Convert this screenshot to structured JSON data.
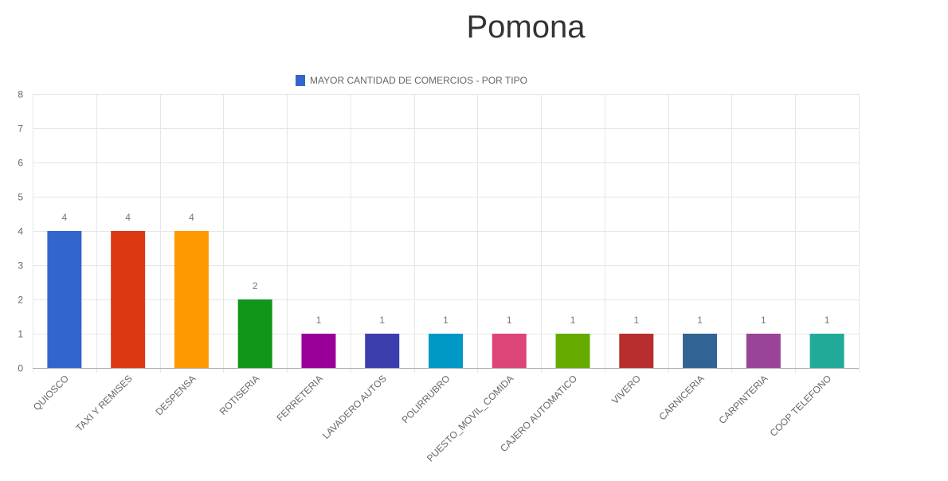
{
  "chart_data": {
    "type": "bar",
    "title": "Pomona",
    "categories": [
      "QUIOSCO",
      "TAXI Y REMISES",
      "DESPENSA",
      "ROTISERIA",
      "FERRETERIA",
      "LAVADERO AUTOS",
      "POLIRRUBRO",
      "PUESTO_MOVIL_COMIDA",
      "CAJERO AUTOMATICO",
      "VIVERO",
      "CARNICERIA",
      "CARPINTERIA",
      "COOP TELEFONO"
    ],
    "series": [
      {
        "name": "MAYOR CANTIDAD DE COMERCIOS - POR TIPO",
        "values": [
          4,
          4,
          4,
          2,
          1,
          1,
          1,
          1,
          1,
          1,
          1,
          1,
          1
        ]
      }
    ],
    "colors": [
      "#3366cc",
      "#dc3912",
      "#ff9900",
      "#109618",
      "#990099",
      "#3b3eac",
      "#0099c6",
      "#dd4477",
      "#66aa00",
      "#b82e2e",
      "#316395",
      "#994499",
      "#22aa99"
    ],
    "legend_color": "#3366cc",
    "ylim": [
      0,
      8
    ],
    "yticks": [
      0,
      1,
      2,
      3,
      4,
      5,
      6,
      7,
      8
    ],
    "grid": true,
    "legend_position": "top",
    "xlabel": "",
    "ylabel": ""
  }
}
